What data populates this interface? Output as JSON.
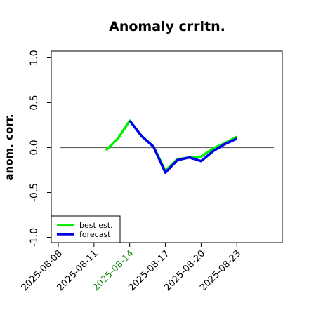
{
  "chart_data": {
    "type": "line",
    "title": "Anomaly crrltn.",
    "xlabel": "",
    "ylabel": "anom. corr.",
    "x": [
      "2025-08-08",
      "2025-08-09",
      "2025-08-10",
      "2025-08-11",
      "2025-08-12",
      "2025-08-13",
      "2025-08-14",
      "2025-08-15",
      "2025-08-16",
      "2025-08-17",
      "2025-08-18",
      "2025-08-19",
      "2025-08-20",
      "2025-08-21",
      "2025-08-22",
      "2025-08-23"
    ],
    "xtick_labels": [
      "2025-08-08",
      "2025-08-11",
      "2025-08-14",
      "2025-08-17",
      "2025-08-20",
      "2025-08-23"
    ],
    "highlight_tick": "2025-08-14",
    "ylim": [
      -1.0,
      1.0
    ],
    "yticks": [
      "-1.0",
      "-0.5",
      "0.0",
      "0.5",
      "1.0"
    ],
    "reference_line": 0.0,
    "legend_position": "bottom-left",
    "series": [
      {
        "name": "best est.",
        "color": "#00ee00",
        "values": [
          null,
          null,
          null,
          null,
          -0.03,
          0.1,
          0.3,
          0.13,
          0.01,
          -0.26,
          -0.13,
          -0.11,
          -0.1,
          -0.01,
          0.05,
          0.12
        ]
      },
      {
        "name": "forecast",
        "color": "#0000ee",
        "values": [
          null,
          null,
          null,
          null,
          null,
          null,
          0.3,
          0.13,
          0.01,
          -0.28,
          -0.14,
          -0.11,
          -0.15,
          -0.04,
          0.04,
          0.1
        ]
      }
    ]
  }
}
